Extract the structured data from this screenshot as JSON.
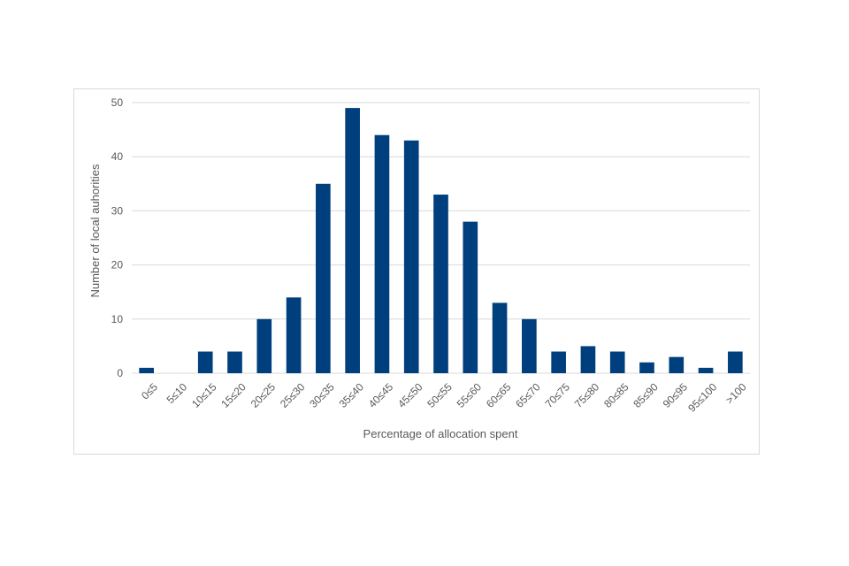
{
  "chart_data": {
    "type": "bar",
    "title": "",
    "xlabel": "Percentage of allocation spent",
    "ylabel": "Number of local auhorities",
    "categories": [
      "0≤5",
      "5≤10",
      "10≤15",
      "15≤20",
      "20≤25",
      "25≤30",
      "30≤35",
      "35≤40",
      "40≤45",
      "45≤50",
      "50≤55",
      "55≤60",
      "60≤65",
      "65≤70",
      "70≤75",
      "75≤80",
      "80≤85",
      "85≤90",
      "90≤95",
      "95≤100",
      ">100"
    ],
    "values": [
      1,
      0,
      4,
      4,
      10,
      14,
      35,
      49,
      44,
      43,
      33,
      28,
      13,
      10,
      4,
      5,
      4,
      2,
      3,
      1,
      4
    ],
    "ylim": [
      0,
      50
    ],
    "yticks": [
      0,
      10,
      20,
      30,
      40,
      50
    ],
    "grid": true,
    "legend": "none",
    "bar_color": "#003f7d",
    "grid_color": "#d9d9d9"
  }
}
